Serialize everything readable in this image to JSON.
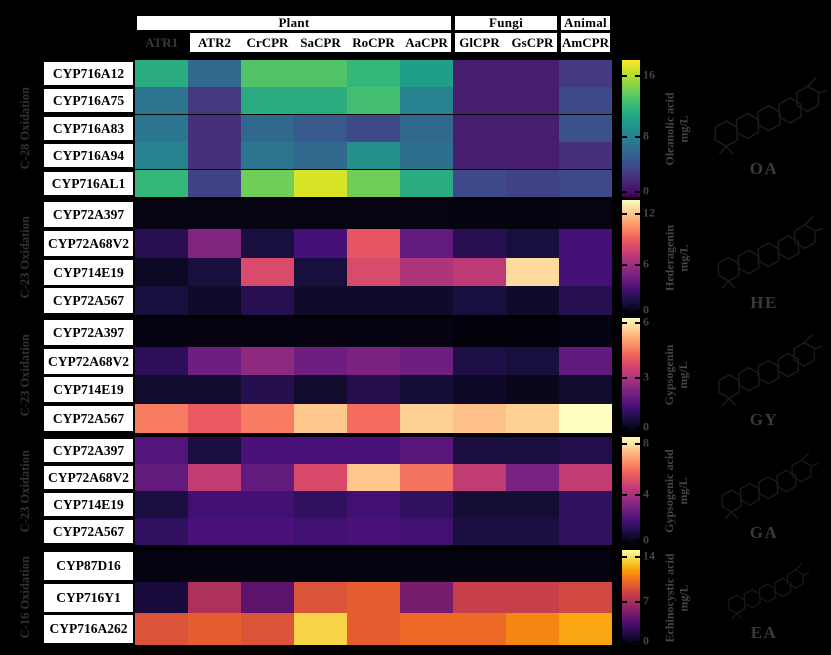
{
  "figure_header": {
    "groups": [
      {
        "label": "Plant",
        "columns": 6
      },
      {
        "label": "Fungi",
        "columns": 2
      },
      {
        "label": "Animal",
        "columns": 1
      }
    ],
    "columns": [
      "ATR1",
      "ATR2",
      "CrCPR",
      "SaCPR",
      "RoCPR",
      "AaCPR",
      "GlCPR",
      "GsCPR",
      "AmCPR"
    ],
    "highlighted_column": "ATR1",
    "colors": {
      "background": "#000000",
      "box_fill": "#ffffff",
      "faint_text": "#4a4540"
    }
  },
  "chart_data": [
    {
      "type": "heatmap",
      "reaction_label": "C-28 Oxidation",
      "colormap": "viridis",
      "columns": [
        "ATR1",
        "ATR2",
        "CrCPR",
        "SaCPR",
        "RoCPR",
        "AaCPR",
        "GlCPR",
        "GsCPR",
        "AmCPR"
      ],
      "rows": [
        "CYP716A12",
        "CYP716A75",
        "CYP716A83",
        "CYP716A94",
        "CYP716AL1"
      ],
      "values": [
        [
          11,
          6,
          13,
          13,
          12,
          10,
          1.5,
          1.5,
          3
        ],
        [
          7,
          3,
          11,
          11,
          12.5,
          8,
          1.5,
          1.5,
          4
        ],
        [
          7,
          2.5,
          6,
          5,
          4,
          6,
          1.5,
          1.5,
          4.5
        ],
        [
          8,
          2.5,
          7,
          6,
          9,
          6.5,
          1.5,
          1.5,
          2.5
        ],
        [
          12,
          3.5,
          14,
          17,
          14,
          11,
          4,
          3.5,
          4
        ]
      ],
      "vmin": 0,
      "vmax": 18,
      "colorbar": {
        "ticks": [
          16,
          8,
          0
        ],
        "title": "Oleanolic acid",
        "unit": "mg/L",
        "product_abbrev": "OA"
      }
    },
    {
      "type": "heatmap",
      "reaction_label": "C-23 Oxidation",
      "colormap": "magma",
      "columns": [
        "ATR1",
        "ATR2",
        "CrCPR",
        "SaCPR",
        "RoCPR",
        "AaCPR",
        "GlCPR",
        "GsCPR",
        "AmCPR"
      ],
      "rows": [
        "CYP72A397",
        "CYP72A68V2",
        "CYP714E19",
        "CYP72A567"
      ],
      "values": [
        [
          0.4,
          0.4,
          0.4,
          0.4,
          0.4,
          0.4,
          0.3,
          0.3,
          0.4
        ],
        [
          2,
          5,
          1.5,
          3,
          8.5,
          4,
          2,
          1.5,
          3
        ],
        [
          0.8,
          1.5,
          8,
          1.5,
          8,
          6.5,
          7,
          12.5,
          3
        ],
        [
          1.5,
          1,
          2,
          1,
          1,
          1,
          1.5,
          1,
          2
        ]
      ],
      "vmin": 0,
      "vmax": 13.5,
      "colorbar": {
        "ticks": [
          12,
          6,
          0
        ],
        "title": "Hederagenin",
        "unit": "mg/L",
        "product_abbrev": "HE"
      }
    },
    {
      "type": "heatmap",
      "reaction_label": "C-23 Oxidation",
      "colormap": "magma",
      "columns": [
        "ATR1",
        "ATR2",
        "CrCPR",
        "SaCPR",
        "RoCPR",
        "AaCPR",
        "GlCPR",
        "GsCPR",
        "AmCPR"
      ],
      "rows": [
        "CYP72A397",
        "CYP72A68V2",
        "CYP714E19",
        "CYP72A567"
      ],
      "values": [
        [
          0.15,
          0.15,
          0.15,
          0.15,
          0.15,
          0.15,
          0.1,
          0.1,
          0.15
        ],
        [
          1.0,
          2.0,
          2.5,
          2.0,
          2.2,
          2.0,
          0.8,
          0.7,
          1.8
        ],
        [
          0.5,
          0.5,
          0.9,
          0.5,
          0.9,
          0.6,
          0.4,
          0.3,
          0.5
        ],
        [
          4.5,
          4.0,
          4.5,
          5.5,
          4.3,
          5.6,
          5.4,
          5.6,
          6.2
        ]
      ],
      "vmin": 0,
      "vmax": 6.2,
      "colorbar": {
        "ticks": [
          6,
          3,
          0
        ],
        "title": "Gypsogenin",
        "unit": "mg/L",
        "product_abbrev": "GY"
      }
    },
    {
      "type": "heatmap",
      "reaction_label": "C-23 Oxidation",
      "colormap": "magma",
      "columns": [
        "ATR1",
        "ATR2",
        "CrCPR",
        "SaCPR",
        "RoCPR",
        "AaCPR",
        "GlCPR",
        "GsCPR",
        "AmCPR"
      ],
      "rows": [
        "CYP72A397",
        "CYP72A68V2",
        "CYP714E19",
        "CYP72A567"
      ],
      "values": [
        [
          2.2,
          1.0,
          2.0,
          2.0,
          2.0,
          2.3,
          1.0,
          1.0,
          1.2
        ],
        [
          2.5,
          4.5,
          2.5,
          5.0,
          7.5,
          6.0,
          4.5,
          3.0,
          4.5
        ],
        [
          1.0,
          1.8,
          1.8,
          1.5,
          1.8,
          1.5,
          0.8,
          0.8,
          1.5
        ],
        [
          1.5,
          2.0,
          2.0,
          1.8,
          2.0,
          1.8,
          1.0,
          1.0,
          1.5
        ]
      ],
      "vmin": 0,
      "vmax": 8.5,
      "colorbar": {
        "ticks": [
          8,
          4,
          0
        ],
        "title": "Gypsogenic acid",
        "unit": "mg/L",
        "product_abbrev": "GA"
      }
    },
    {
      "type": "heatmap",
      "reaction_label": "C-16 Oxidation",
      "colormap": "inferno",
      "columns": [
        "ATR1",
        "ATR2",
        "CrCPR",
        "SaCPR",
        "RoCPR",
        "AaCPR",
        "GlCPR",
        "GsCPR",
        "AmCPR"
      ],
      "rows": [
        "CYP87D16",
        "CYP716Y1",
        "CYP716A262"
      ],
      "values": [
        [
          0.3,
          0.3,
          0.3,
          0.3,
          0.3,
          0.3,
          0.3,
          0.3,
          0.3
        ],
        [
          1.5,
          7,
          4,
          9,
          9.5,
          5,
          8,
          8,
          8.5
        ],
        [
          9,
          9.5,
          9,
          13.5,
          9.5,
          10,
          10,
          11,
          12
        ]
      ],
      "vmin": 0,
      "vmax": 15,
      "colorbar": {
        "ticks": [
          14,
          7,
          0
        ],
        "title": "Echinocystic acid",
        "unit": "mg/L",
        "product_abbrev": "EA"
      }
    }
  ]
}
